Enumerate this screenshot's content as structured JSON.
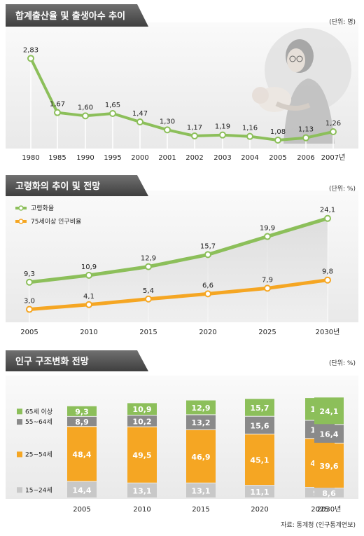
{
  "chart_data": [
    {
      "type": "line",
      "title": "합계출산율 및 출생아수 추이",
      "unit": "(단위: 명)",
      "x": [
        "1980",
        "1985",
        "1990",
        "1995",
        "2000",
        "2001",
        "2002",
        "2003",
        "2004",
        "2005",
        "2006",
        "2007년"
      ],
      "values": [
        2.83,
        1.67,
        1.6,
        1.65,
        1.47,
        1.3,
        1.17,
        1.19,
        1.16,
        1.08,
        1.13,
        1.26
      ],
      "labels": [
        "2,83",
        "1,67",
        "1,60",
        "1,65",
        "1,47",
        "1,30",
        "1,17",
        "1,19",
        "1,16",
        "1,08",
        "1,13",
        "1,26"
      ],
      "ylim": [
        0.9,
        3.0
      ],
      "color": "#8cbf5a"
    },
    {
      "type": "line",
      "title": "고령화의 추이 및 전망",
      "unit": "(단위: %)",
      "x": [
        "2005",
        "2010",
        "2015",
        "2020",
        "2025",
        "2030년"
      ],
      "legend_position": "top-left",
      "series": [
        {
          "name": "고령화율",
          "values": [
            9.3,
            10.9,
            12.9,
            15.7,
            19.9,
            24.1
          ],
          "labels": [
            "9,3",
            "10,9",
            "12,9",
            "15,7",
            "19,9",
            "24,1"
          ],
          "color": "#8cbf5a"
        },
        {
          "name": "75세이상 인구비율",
          "values": [
            3.0,
            4.1,
            5.4,
            6.6,
            7.9,
            9.8
          ],
          "labels": [
            "3,0",
            "4,1",
            "5,4",
            "6,6",
            "7,9",
            "9,8"
          ],
          "color": "#f5a623"
        }
      ],
      "ylim": [
        0,
        26
      ]
    },
    {
      "type": "bar",
      "stacked": true,
      "title": "인구 구조변화 전망",
      "unit": "(단위: %)",
      "categories": [
        "2005",
        "2010",
        "2015",
        "2020",
        "2025",
        "2030년"
      ],
      "series": [
        {
          "name": "15~24세",
          "values": [
            14.4,
            13.1,
            13.1,
            11.1,
            9.3,
            8.6
          ],
          "labels": [
            "14,4",
            "13,1",
            "13,1",
            "11,1",
            "9,3",
            "8,6"
          ],
          "color": "#c8c8c8"
        },
        {
          "name": "25~54세",
          "values": [
            48.4,
            49.5,
            46.9,
            45.1,
            43.0,
            39.6
          ],
          "labels": [
            "48,4",
            "49,5",
            "46,9",
            "45,1",
            "43,0",
            "39,6"
          ],
          "color": "#f5a623"
        },
        {
          "name": "55~64세",
          "values": [
            8.9,
            10.2,
            13.2,
            15.6,
            16.0,
            16.4
          ],
          "labels": [
            "8,9",
            "10,2",
            "13,2",
            "15,6",
            "16,0",
            "16,4"
          ],
          "color": "#8a8a8a"
        },
        {
          "name": "65세 이상",
          "values": [
            9.3,
            10.9,
            12.9,
            15.7,
            19.9,
            24.1
          ],
          "labels": [
            "9,3",
            "10,9",
            "12,9",
            "15,7",
            "19,9",
            "24,1"
          ],
          "color": "#8cbf5a"
        }
      ],
      "source": "자료: 통계청 (인구통계연보)"
    }
  ]
}
